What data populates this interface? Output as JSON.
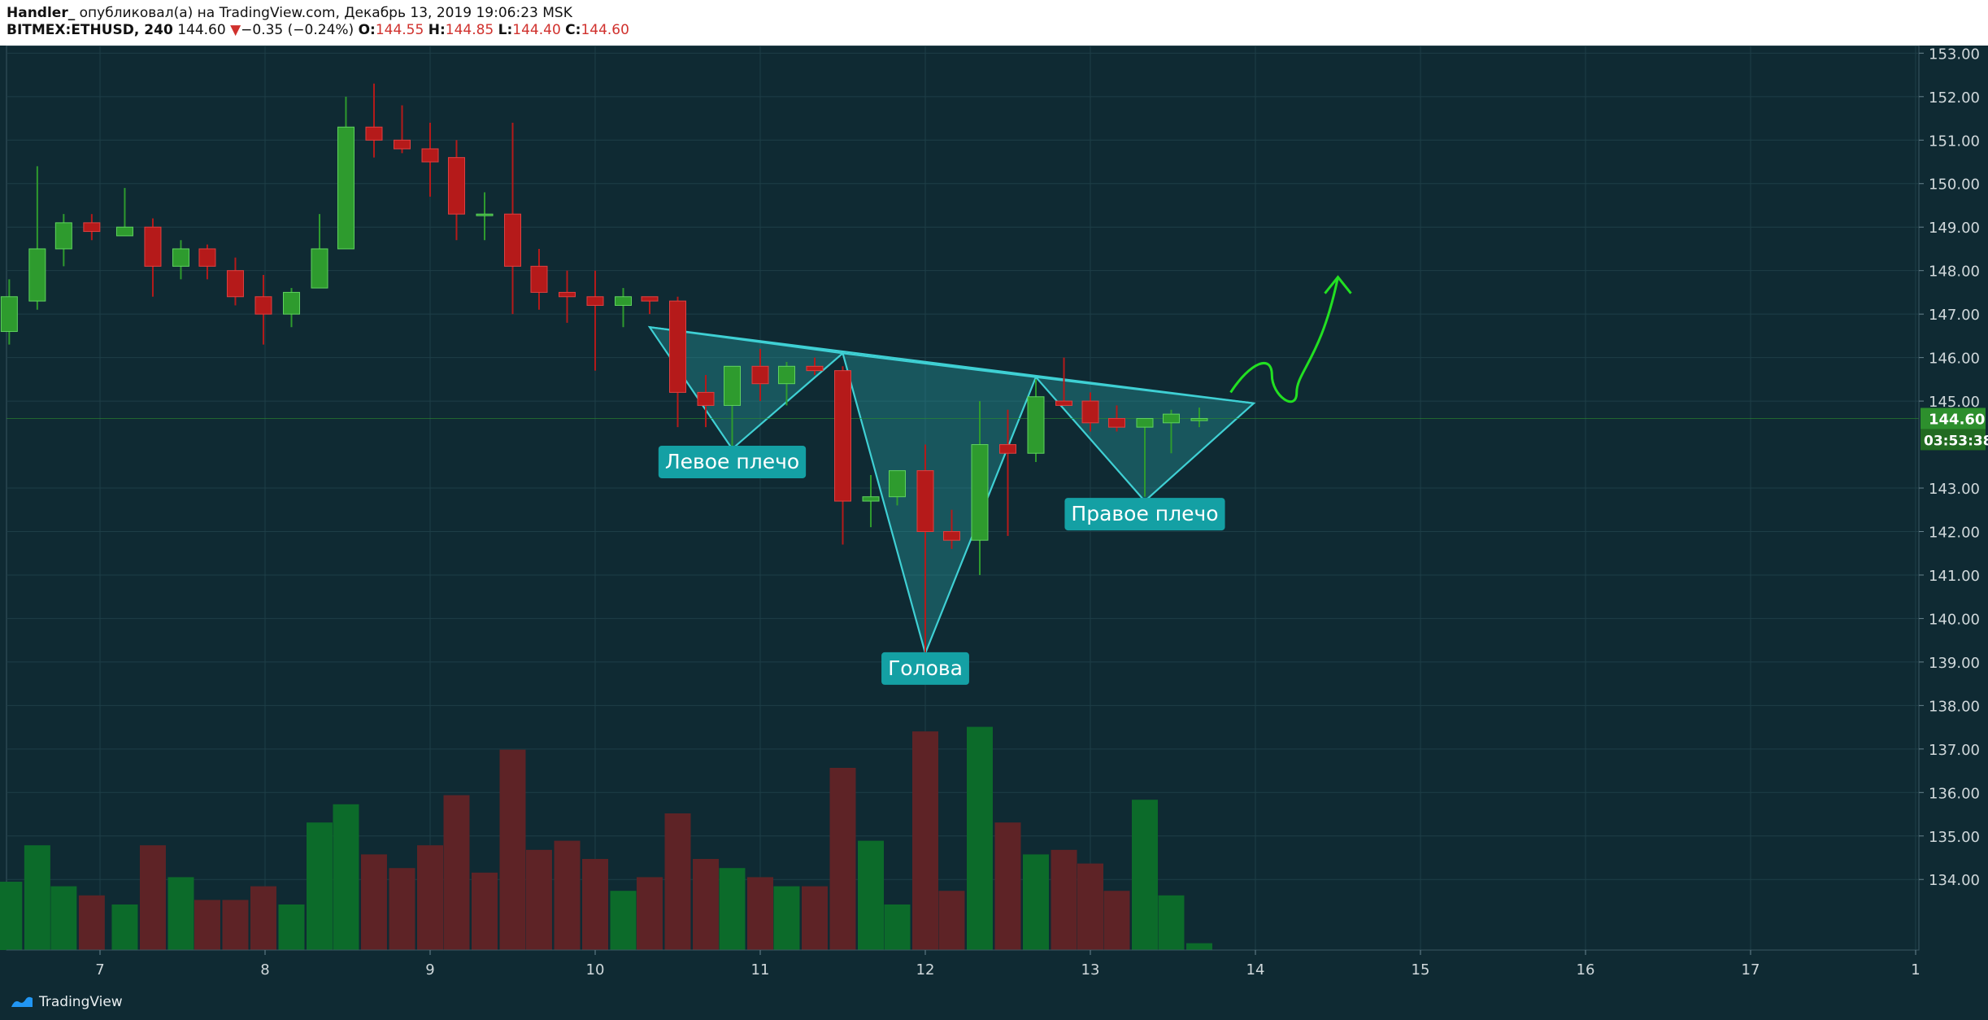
{
  "header": {
    "author": "Handler_",
    "published": "опубликовал(а) на TradingView.com, Декабрь 13, 2019 19:06:23 MSK",
    "symbol": "BITMEX:ETHUSD, 240",
    "last": "144.60",
    "change_arrow": "▼",
    "change": "−0.35 (−0.24%)",
    "o_label": "O:",
    "o_value": "144.55",
    "h_label": "H:",
    "h_value": "144.85",
    "l_label": "L:",
    "l_value": "144.40",
    "c_label": "C:",
    "c_value": "144.60"
  },
  "footer": {
    "brand": "TradingView",
    "logo_icon": "tradingview-logo-icon"
  },
  "colors": {
    "background": "#0f2a33",
    "grid": "#1e3e47",
    "up": "#2e9b2e",
    "down": "#b51a1a",
    "volume_up": "#0c6b2a",
    "volume_down": "#5e2326",
    "pattern_stroke": "#3fd0d4",
    "pattern_fill": "#2aa9ad",
    "label_bg": "#14a0a4",
    "arrow": "#22e022",
    "axis_text": "#d0d8db",
    "price_tag": "#2d8f2d"
  },
  "chart_data": {
    "type": "candlestick",
    "x_ticks": [
      "7",
      "8",
      "9",
      "10",
      "11",
      "12",
      "13",
      "14",
      "15",
      "16",
      "17",
      "1"
    ],
    "y_ticks": [
      "153.00",
      "152.00",
      "151.00",
      "150.00",
      "149.00",
      "148.00",
      "147.00",
      "146.00",
      "145.00",
      "143.00",
      "142.00",
      "141.00",
      "140.00",
      "139.00",
      "138.00",
      "137.00",
      "136.00",
      "135.00",
      "134.00"
    ],
    "ylim": [
      133.2,
      153.1
    ],
    "current_price": "144.60",
    "countdown": "03:53:38",
    "candles": [
      {
        "x": 6.45,
        "o": 146.6,
        "h": 147.8,
        "l": 146.3,
        "c": 147.4
      },
      {
        "x": 6.62,
        "o": 147.3,
        "h": 150.4,
        "l": 147.1,
        "c": 148.5
      },
      {
        "x": 6.78,
        "o": 148.5,
        "h": 149.3,
        "l": 148.1,
        "c": 149.1
      },
      {
        "x": 6.95,
        "o": 149.1,
        "h": 149.3,
        "l": 148.7,
        "c": 148.9
      },
      {
        "x": 7.15,
        "o": 148.8,
        "h": 149.9,
        "l": 148.8,
        "c": 149.0
      },
      {
        "x": 7.32,
        "o": 149.0,
        "h": 149.2,
        "l": 147.4,
        "c": 148.1
      },
      {
        "x": 7.49,
        "o": 148.1,
        "h": 148.7,
        "l": 147.8,
        "c": 148.5
      },
      {
        "x": 7.65,
        "o": 148.5,
        "h": 148.6,
        "l": 147.8,
        "c": 148.1
      },
      {
        "x": 7.82,
        "o": 148.0,
        "h": 148.3,
        "l": 147.2,
        "c": 147.4
      },
      {
        "x": 7.99,
        "o": 147.4,
        "h": 147.9,
        "l": 146.3,
        "c": 147.0
      },
      {
        "x": 8.16,
        "o": 147.0,
        "h": 147.6,
        "l": 146.7,
        "c": 147.5
      },
      {
        "x": 8.33,
        "o": 147.6,
        "h": 149.3,
        "l": 147.6,
        "c": 148.5
      },
      {
        "x": 8.49,
        "o": 148.5,
        "h": 152.0,
        "l": 148.5,
        "c": 151.3
      },
      {
        "x": 8.66,
        "o": 151.3,
        "h": 152.3,
        "l": 150.6,
        "c": 151.0
      },
      {
        "x": 8.83,
        "o": 151.0,
        "h": 151.8,
        "l": 150.7,
        "c": 150.8
      },
      {
        "x": 9.0,
        "o": 150.8,
        "h": 151.4,
        "l": 149.7,
        "c": 150.5
      },
      {
        "x": 9.16,
        "o": 150.6,
        "h": 151.0,
        "l": 148.7,
        "c": 149.3
      },
      {
        "x": 9.33,
        "o": 149.3,
        "h": 149.8,
        "l": 148.7,
        "c": 149.3
      },
      {
        "x": 9.5,
        "o": 149.3,
        "h": 151.4,
        "l": 147.0,
        "c": 148.1
      },
      {
        "x": 9.66,
        "o": 148.1,
        "h": 148.5,
        "l": 147.1,
        "c": 147.5
      },
      {
        "x": 9.83,
        "o": 147.5,
        "h": 148.0,
        "l": 146.8,
        "c": 147.4
      },
      {
        "x": 10.0,
        "o": 147.4,
        "h": 148.0,
        "l": 145.7,
        "c": 147.2
      },
      {
        "x": 10.17,
        "o": 147.2,
        "h": 147.6,
        "l": 146.7,
        "c": 147.4
      },
      {
        "x": 10.33,
        "o": 147.4,
        "h": 147.4,
        "l": 147.0,
        "c": 147.3
      },
      {
        "x": 10.5,
        "o": 147.3,
        "h": 147.4,
        "l": 144.4,
        "c": 145.2
      },
      {
        "x": 10.67,
        "o": 145.2,
        "h": 145.6,
        "l": 144.4,
        "c": 144.9
      },
      {
        "x": 10.83,
        "o": 144.9,
        "h": 145.8,
        "l": 143.9,
        "c": 145.8
      },
      {
        "x": 11.0,
        "o": 145.8,
        "h": 146.2,
        "l": 145.0,
        "c": 145.4
      },
      {
        "x": 11.16,
        "o": 145.4,
        "h": 145.9,
        "l": 144.9,
        "c": 145.8
      },
      {
        "x": 11.33,
        "o": 145.8,
        "h": 146.0,
        "l": 145.6,
        "c": 145.7
      },
      {
        "x": 11.5,
        "o": 145.7,
        "h": 145.8,
        "l": 141.7,
        "c": 142.7
      },
      {
        "x": 11.67,
        "o": 142.7,
        "h": 143.3,
        "l": 142.1,
        "c": 142.8
      },
      {
        "x": 11.83,
        "o": 142.8,
        "h": 143.4,
        "l": 142.6,
        "c": 143.4
      },
      {
        "x": 12.0,
        "o": 143.4,
        "h": 144.0,
        "l": 139.2,
        "c": 142.0
      },
      {
        "x": 12.16,
        "o": 142.0,
        "h": 142.5,
        "l": 141.6,
        "c": 141.8
      },
      {
        "x": 12.33,
        "o": 141.8,
        "h": 145.0,
        "l": 141.0,
        "c": 144.0
      },
      {
        "x": 12.5,
        "o": 144.0,
        "h": 144.8,
        "l": 141.9,
        "c": 143.8
      },
      {
        "x": 12.67,
        "o": 143.8,
        "h": 145.5,
        "l": 143.6,
        "c": 145.1
      },
      {
        "x": 12.84,
        "o": 145.0,
        "h": 146.0,
        "l": 144.9,
        "c": 144.9
      },
      {
        "x": 13.0,
        "o": 145.0,
        "h": 145.2,
        "l": 144.3,
        "c": 144.5
      },
      {
        "x": 13.16,
        "o": 144.6,
        "h": 144.9,
        "l": 144.3,
        "c": 144.4
      },
      {
        "x": 13.33,
        "o": 144.4,
        "h": 144.6,
        "l": 142.8,
        "c": 144.6
      },
      {
        "x": 13.49,
        "o": 144.5,
        "h": 144.8,
        "l": 143.8,
        "c": 144.7
      },
      {
        "x": 13.66,
        "o": 144.55,
        "h": 144.85,
        "l": 144.4,
        "c": 144.6
      }
    ],
    "volume": [
      {
        "x": 6.45,
        "v": 1.5,
        "up": true
      },
      {
        "x": 6.62,
        "v": 2.3,
        "up": true
      },
      {
        "x": 6.78,
        "v": 1.4,
        "up": true
      },
      {
        "x": 6.95,
        "v": 1.2,
        "up": false
      },
      {
        "x": 7.15,
        "v": 1.0,
        "up": true
      },
      {
        "x": 7.32,
        "v": 2.3,
        "up": false
      },
      {
        "x": 7.49,
        "v": 1.6,
        "up": true
      },
      {
        "x": 7.65,
        "v": 1.1,
        "up": false
      },
      {
        "x": 7.82,
        "v": 1.1,
        "up": false
      },
      {
        "x": 7.99,
        "v": 1.4,
        "up": false
      },
      {
        "x": 8.16,
        "v": 1.0,
        "up": true
      },
      {
        "x": 8.33,
        "v": 2.8,
        "up": true
      },
      {
        "x": 8.49,
        "v": 3.2,
        "up": true
      },
      {
        "x": 8.66,
        "v": 2.1,
        "up": false
      },
      {
        "x": 8.83,
        "v": 1.8,
        "up": false
      },
      {
        "x": 9.0,
        "v": 2.3,
        "up": false
      },
      {
        "x": 9.16,
        "v": 3.4,
        "up": false
      },
      {
        "x": 9.33,
        "v": 1.7,
        "up": false
      },
      {
        "x": 9.5,
        "v": 4.4,
        "up": false
      },
      {
        "x": 9.66,
        "v": 2.2,
        "up": false
      },
      {
        "x": 9.83,
        "v": 2.4,
        "up": false
      },
      {
        "x": 10.0,
        "v": 2.0,
        "up": false
      },
      {
        "x": 10.17,
        "v": 1.3,
        "up": true
      },
      {
        "x": 10.33,
        "v": 1.6,
        "up": false
      },
      {
        "x": 10.5,
        "v": 3.0,
        "up": false
      },
      {
        "x": 10.67,
        "v": 2.0,
        "up": false
      },
      {
        "x": 10.83,
        "v": 1.8,
        "up": true
      },
      {
        "x": 11.0,
        "v": 1.6,
        "up": false
      },
      {
        "x": 11.16,
        "v": 1.4,
        "up": true
      },
      {
        "x": 11.33,
        "v": 1.4,
        "up": false
      },
      {
        "x": 11.5,
        "v": 4.0,
        "up": false
      },
      {
        "x": 11.67,
        "v": 2.4,
        "up": true
      },
      {
        "x": 11.83,
        "v": 1.0,
        "up": true
      },
      {
        "x": 12.0,
        "v": 4.8,
        "up": false
      },
      {
        "x": 12.16,
        "v": 1.3,
        "up": false
      },
      {
        "x": 12.33,
        "v": 4.9,
        "up": true
      },
      {
        "x": 12.5,
        "v": 2.8,
        "up": false
      },
      {
        "x": 12.67,
        "v": 2.1,
        "up": true
      },
      {
        "x": 12.84,
        "v": 2.2,
        "up": false
      },
      {
        "x": 13.0,
        "v": 1.9,
        "up": false
      },
      {
        "x": 13.16,
        "v": 1.3,
        "up": false
      },
      {
        "x": 13.33,
        "v": 3.3,
        "up": true
      },
      {
        "x": 13.49,
        "v": 1.2,
        "up": true
      },
      {
        "x": 13.66,
        "v": 0.15,
        "up": true
      }
    ],
    "pattern": {
      "neckline": [
        {
          "x": 10.33,
          "y": 146.7
        },
        {
          "x": 13.99,
          "y": 144.95
        }
      ],
      "left_shoulder": [
        {
          "x": 10.33,
          "y": 146.7
        },
        {
          "x": 10.83,
          "y": 143.9
        },
        {
          "x": 11.5,
          "y": 146.1
        }
      ],
      "head": [
        {
          "x": 11.5,
          "y": 146.1
        },
        {
          "x": 12.0,
          "y": 139.2
        },
        {
          "x": 12.67,
          "y": 145.55
        }
      ],
      "right_shoulder": [
        {
          "x": 12.67,
          "y": 145.55
        },
        {
          "x": 13.33,
          "y": 142.7
        },
        {
          "x": 13.99,
          "y": 144.95
        }
      ]
    },
    "annotations": [
      {
        "text": "Левое плечо",
        "x": 10.83,
        "y": 143.6
      },
      {
        "text": "Голова",
        "x": 12.0,
        "y": 138.85
      },
      {
        "text": "Правое плечо",
        "x": 13.33,
        "y": 142.4
      }
    ],
    "forecast": [
      {
        "x": 13.85,
        "y": 145.2
      },
      {
        "x": 13.97,
        "y": 145.9
      },
      {
        "x": 14.1,
        "y": 145.6
      },
      {
        "x": 14.25,
        "y": 145.2
      },
      {
        "x": 14.4,
        "y": 146.0
      },
      {
        "x": 14.5,
        "y": 147.85
      }
    ]
  }
}
